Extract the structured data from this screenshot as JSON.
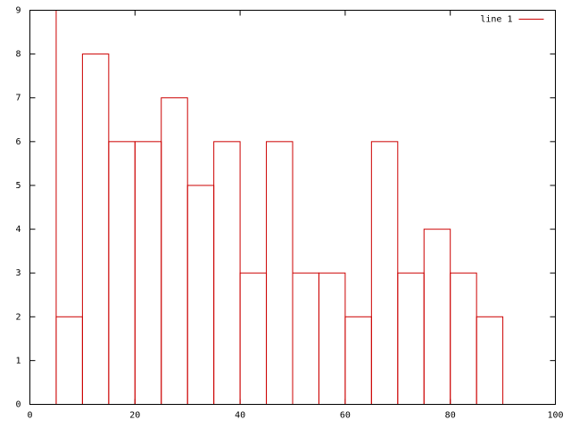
{
  "chart_data": {
    "type": "histogram",
    "bins": [
      0,
      5,
      10,
      15,
      20,
      25,
      30,
      35,
      40,
      45,
      50,
      55,
      60,
      65,
      70,
      75,
      80,
      85,
      90
    ],
    "series": [
      {
        "name": "line 1",
        "color": "#cc0000",
        "values": [
          9,
          2,
          8,
          6,
          6,
          7,
          5,
          6,
          3,
          6,
          3,
          3,
          2,
          6,
          3,
          4,
          3,
          2
        ]
      }
    ],
    "xlim": [
      0,
      100
    ],
    "xticks": [
      0,
      20,
      40,
      60,
      80,
      100
    ],
    "ylim": [
      0,
      9
    ],
    "yticks": [
      0,
      1,
      2,
      3,
      4,
      5,
      6,
      7,
      8,
      9
    ],
    "legend": "upper right"
  }
}
